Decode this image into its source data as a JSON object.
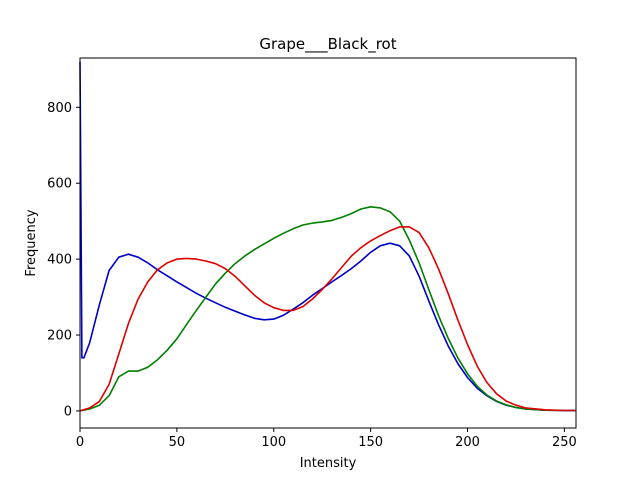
{
  "chart_data": {
    "type": "line",
    "title": "Grape___Black_rot",
    "xlabel": "Intensity",
    "ylabel": "Frequency",
    "xlim": [
      0,
      256
    ],
    "ylim": [
      -45,
      930
    ],
    "xticks": [
      0,
      50,
      100,
      150,
      200,
      250
    ],
    "yticks": [
      0,
      200,
      400,
      600,
      800
    ],
    "grid": false,
    "series": [
      {
        "color": "#0000cc",
        "points": [
          [
            0,
            920
          ],
          [
            1,
            140
          ],
          [
            2,
            140
          ],
          [
            5,
            180
          ],
          [
            10,
            280
          ],
          [
            15,
            370
          ],
          [
            20,
            405
          ],
          [
            25,
            413
          ],
          [
            30,
            405
          ],
          [
            35,
            390
          ],
          [
            40,
            372
          ],
          [
            45,
            356
          ],
          [
            50,
            340
          ],
          [
            55,
            325
          ],
          [
            60,
            310
          ],
          [
            65,
            297
          ],
          [
            70,
            285
          ],
          [
            75,
            273
          ],
          [
            80,
            263
          ],
          [
            85,
            253
          ],
          [
            90,
            244
          ],
          [
            95,
            240
          ],
          [
            100,
            242
          ],
          [
            105,
            252
          ],
          [
            110,
            268
          ],
          [
            115,
            285
          ],
          [
            120,
            305
          ],
          [
            125,
            322
          ],
          [
            130,
            340
          ],
          [
            135,
            357
          ],
          [
            140,
            375
          ],
          [
            145,
            395
          ],
          [
            150,
            418
          ],
          [
            155,
            435
          ],
          [
            160,
            442
          ],
          [
            165,
            435
          ],
          [
            170,
            408
          ],
          [
            175,
            355
          ],
          [
            180,
            290
          ],
          [
            185,
            228
          ],
          [
            190,
            172
          ],
          [
            195,
            125
          ],
          [
            200,
            88
          ],
          [
            205,
            60
          ],
          [
            210,
            40
          ],
          [
            215,
            25
          ],
          [
            220,
            15
          ],
          [
            225,
            9
          ],
          [
            230,
            5
          ],
          [
            240,
            2
          ],
          [
            250,
            1
          ],
          [
            256,
            1
          ]
        ]
      },
      {
        "color": "#007f00",
        "points": [
          [
            0,
            0
          ],
          [
            5,
            5
          ],
          [
            10,
            15
          ],
          [
            15,
            40
          ],
          [
            20,
            90
          ],
          [
            25,
            105
          ],
          [
            30,
            105
          ],
          [
            35,
            115
          ],
          [
            40,
            135
          ],
          [
            45,
            160
          ],
          [
            50,
            190
          ],
          [
            55,
            228
          ],
          [
            60,
            265
          ],
          [
            65,
            300
          ],
          [
            70,
            335
          ],
          [
            75,
            363
          ],
          [
            80,
            388
          ],
          [
            85,
            408
          ],
          [
            90,
            425
          ],
          [
            95,
            440
          ],
          [
            100,
            455
          ],
          [
            105,
            468
          ],
          [
            110,
            480
          ],
          [
            115,
            490
          ],
          [
            120,
            495
          ],
          [
            125,
            498
          ],
          [
            130,
            502
          ],
          [
            135,
            510
          ],
          [
            140,
            520
          ],
          [
            145,
            532
          ],
          [
            150,
            538
          ],
          [
            155,
            535
          ],
          [
            160,
            525
          ],
          [
            165,
            500
          ],
          [
            170,
            450
          ],
          [
            175,
            390
          ],
          [
            180,
            320
          ],
          [
            185,
            252
          ],
          [
            190,
            192
          ],
          [
            195,
            140
          ],
          [
            200,
            98
          ],
          [
            205,
            65
          ],
          [
            210,
            42
          ],
          [
            215,
            26
          ],
          [
            220,
            16
          ],
          [
            225,
            9
          ],
          [
            230,
            5
          ],
          [
            240,
            2
          ],
          [
            250,
            1
          ],
          [
            256,
            1
          ]
        ]
      },
      {
        "color": "#dd0000",
        "points": [
          [
            0,
            0
          ],
          [
            5,
            8
          ],
          [
            10,
            25
          ],
          [
            15,
            70
          ],
          [
            20,
            150
          ],
          [
            25,
            230
          ],
          [
            30,
            295
          ],
          [
            35,
            340
          ],
          [
            40,
            372
          ],
          [
            45,
            390
          ],
          [
            50,
            400
          ],
          [
            55,
            402
          ],
          [
            60,
            400
          ],
          [
            65,
            395
          ],
          [
            70,
            388
          ],
          [
            75,
            375
          ],
          [
            80,
            355
          ],
          [
            85,
            330
          ],
          [
            90,
            305
          ],
          [
            95,
            285
          ],
          [
            100,
            272
          ],
          [
            105,
            265
          ],
          [
            110,
            265
          ],
          [
            115,
            275
          ],
          [
            120,
            295
          ],
          [
            125,
            320
          ],
          [
            130,
            348
          ],
          [
            135,
            378
          ],
          [
            140,
            408
          ],
          [
            145,
            430
          ],
          [
            150,
            448
          ],
          [
            155,
            462
          ],
          [
            160,
            475
          ],
          [
            165,
            485
          ],
          [
            170,
            485
          ],
          [
            175,
            470
          ],
          [
            180,
            430
          ],
          [
            185,
            375
          ],
          [
            190,
            310
          ],
          [
            195,
            240
          ],
          [
            200,
            175
          ],
          [
            205,
            118
          ],
          [
            210,
            75
          ],
          [
            215,
            45
          ],
          [
            220,
            26
          ],
          [
            225,
            15
          ],
          [
            230,
            8
          ],
          [
            240,
            3
          ],
          [
            250,
            1
          ],
          [
            256,
            1
          ]
        ]
      }
    ]
  }
}
